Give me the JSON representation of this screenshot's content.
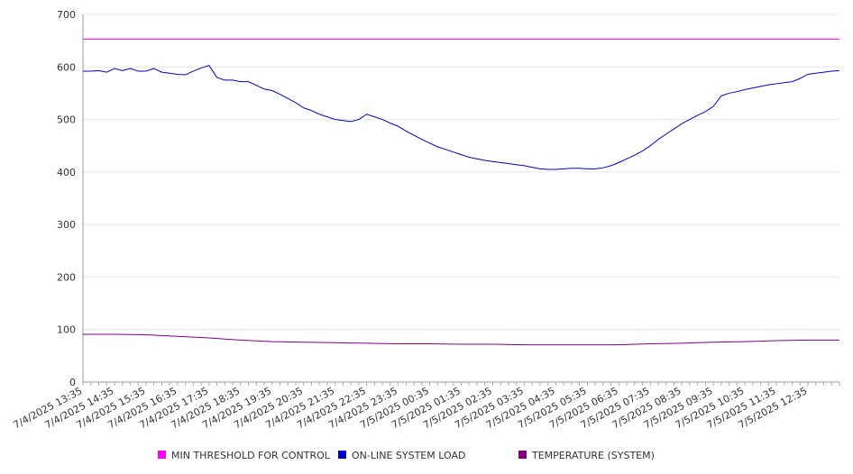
{
  "chart_data": {
    "type": "line",
    "title": "",
    "xlabel": "",
    "ylabel": "",
    "ylim": [
      0,
      700
    ],
    "yticks": [
      0,
      100,
      200,
      300,
      400,
      500,
      600,
      700
    ],
    "x_start": "7/4/2025 13:35",
    "x_end": "7/5/2025 13:35",
    "x_tick_labels": [
      "7/4/2025 13:35",
      "7/4/2025 14:35",
      "7/4/2025 15:35",
      "7/4/2025 16:35",
      "7/4/2025 17:35",
      "7/4/2025 18:35",
      "7/4/2025 19:35",
      "7/4/2025 20:35",
      "7/4/2025 21:35",
      "7/4/2025 22:35",
      "7/4/2025 23:35",
      "7/5/2025 00:35",
      "7/5/2025 01:35",
      "7/5/2025 02:35",
      "7/5/2025 03:35",
      "7/5/2025 04:35",
      "7/5/2025 05:35",
      "7/5/2025 06:35",
      "7/5/2025 07:35",
      "7/5/2025 08:35",
      "7/5/2025 09:35",
      "7/5/2025 10:35",
      "7/5/2025 11:35",
      "7/5/2025 12:35"
    ],
    "grid": true,
    "legend_position": "bottom",
    "series": [
      {
        "name": "MIN THRESHOLD FOR CONTROL",
        "color": "#ff00ff",
        "points": [
          [
            "7/4/2025 13:35",
            653
          ],
          [
            "7/5/2025 13:35",
            653
          ]
        ]
      },
      {
        "name": "ON-LINE SYSTEM LOAD",
        "color": "#0000cc",
        "points": [
          [
            "7/4/2025 13:35",
            592
          ],
          [
            "7/4/2025 13:50",
            592
          ],
          [
            "7/4/2025 14:05",
            593
          ],
          [
            "7/4/2025 14:20",
            590
          ],
          [
            "7/4/2025 14:35",
            597
          ],
          [
            "7/4/2025 14:50",
            593
          ],
          [
            "7/4/2025 15:05",
            597
          ],
          [
            "7/4/2025 15:20",
            592
          ],
          [
            "7/4/2025 15:35",
            592
          ],
          [
            "7/4/2025 15:50",
            597
          ],
          [
            "7/4/2025 16:05",
            590
          ],
          [
            "7/4/2025 16:20",
            588
          ],
          [
            "7/4/2025 16:35",
            586
          ],
          [
            "7/4/2025 16:50",
            585
          ],
          [
            "7/4/2025 17:05",
            592
          ],
          [
            "7/4/2025 17:20",
            598
          ],
          [
            "7/4/2025 17:35",
            603
          ],
          [
            "7/4/2025 17:50",
            580
          ],
          [
            "7/4/2025 18:05",
            575
          ],
          [
            "7/4/2025 18:20",
            575
          ],
          [
            "7/4/2025 18:35",
            572
          ],
          [
            "7/4/2025 18:50",
            572
          ],
          [
            "7/4/2025 19:05",
            565
          ],
          [
            "7/4/2025 19:20",
            558
          ],
          [
            "7/4/2025 19:35",
            555
          ],
          [
            "7/4/2025 19:50",
            548
          ],
          [
            "7/4/2025 20:05",
            540
          ],
          [
            "7/4/2025 20:20",
            532
          ],
          [
            "7/4/2025 20:35",
            522
          ],
          [
            "7/4/2025 20:50",
            517
          ],
          [
            "7/4/2025 21:05",
            510
          ],
          [
            "7/4/2025 21:20",
            505
          ],
          [
            "7/4/2025 21:35",
            500
          ],
          [
            "7/4/2025 21:50",
            498
          ],
          [
            "7/4/2025 22:05",
            496
          ],
          [
            "7/4/2025 22:20",
            500
          ],
          [
            "7/4/2025 22:35",
            510
          ],
          [
            "7/4/2025 22:50",
            505
          ],
          [
            "7/4/2025 23:05",
            500
          ],
          [
            "7/4/2025 23:20",
            493
          ],
          [
            "7/4/2025 23:35",
            487
          ],
          [
            "7/4/2025 23:50",
            478
          ],
          [
            "7/5/2025 00:05",
            470
          ],
          [
            "7/5/2025 00:20",
            462
          ],
          [
            "7/5/2025 00:35",
            455
          ],
          [
            "7/5/2025 00:50",
            448
          ],
          [
            "7/5/2025 01:05",
            443
          ],
          [
            "7/5/2025 01:20",
            438
          ],
          [
            "7/5/2025 01:35",
            433
          ],
          [
            "7/5/2025 01:50",
            428
          ],
          [
            "7/5/2025 02:05",
            425
          ],
          [
            "7/5/2025 02:20",
            422
          ],
          [
            "7/5/2025 02:35",
            420
          ],
          [
            "7/5/2025 02:50",
            418
          ],
          [
            "7/5/2025 03:05",
            416
          ],
          [
            "7/5/2025 03:20",
            414
          ],
          [
            "7/5/2025 03:35",
            412
          ],
          [
            "7/5/2025 03:50",
            409
          ],
          [
            "7/5/2025 04:05",
            406
          ],
          [
            "7/5/2025 04:20",
            405
          ],
          [
            "7/5/2025 04:35",
            405
          ],
          [
            "7/5/2025 04:50",
            406
          ],
          [
            "7/5/2025 05:05",
            407
          ],
          [
            "7/5/2025 05:20",
            407
          ],
          [
            "7/5/2025 05:35",
            406
          ],
          [
            "7/5/2025 05:50",
            406
          ],
          [
            "7/5/2025 06:05",
            408
          ],
          [
            "7/5/2025 06:20",
            412
          ],
          [
            "7/5/2025 06:35",
            418
          ],
          [
            "7/5/2025 06:50",
            425
          ],
          [
            "7/5/2025 07:05",
            432
          ],
          [
            "7/5/2025 07:20",
            440
          ],
          [
            "7/5/2025 07:35",
            450
          ],
          [
            "7/5/2025 07:50",
            462
          ],
          [
            "7/5/2025 08:05",
            472
          ],
          [
            "7/5/2025 08:20",
            482
          ],
          [
            "7/5/2025 08:35",
            492
          ],
          [
            "7/5/2025 08:50",
            500
          ],
          [
            "7/5/2025 09:05",
            508
          ],
          [
            "7/5/2025 09:20",
            515
          ],
          [
            "7/5/2025 09:35",
            525
          ],
          [
            "7/5/2025 09:50",
            545
          ],
          [
            "7/5/2025 10:05",
            550
          ],
          [
            "7/5/2025 10:20",
            553
          ],
          [
            "7/5/2025 10:35",
            557
          ],
          [
            "7/5/2025 10:50",
            560
          ],
          [
            "7/5/2025 11:05",
            563
          ],
          [
            "7/5/2025 11:20",
            566
          ],
          [
            "7/5/2025 11:35",
            568
          ],
          [
            "7/5/2025 11:50",
            570
          ],
          [
            "7/5/2025 12:05",
            572
          ],
          [
            "7/5/2025 12:20",
            578
          ],
          [
            "7/5/2025 12:35",
            586
          ],
          [
            "7/5/2025 12:50",
            588
          ],
          [
            "7/5/2025 13:05",
            590
          ],
          [
            "7/5/2025 13:20",
            592
          ],
          [
            "7/5/2025 13:35",
            593
          ]
        ]
      },
      {
        "name": "TEMPERATURE (SYSTEM)",
        "color": "#800080",
        "points": [
          [
            "7/4/2025 13:35",
            91
          ],
          [
            "7/4/2025 14:35",
            91
          ],
          [
            "7/4/2025 15:35",
            90
          ],
          [
            "7/4/2025 16:35",
            87
          ],
          [
            "7/4/2025 17:35",
            84
          ],
          [
            "7/4/2025 18:35",
            80
          ],
          [
            "7/4/2025 19:35",
            77
          ],
          [
            "7/4/2025 20:35",
            76
          ],
          [
            "7/4/2025 21:35",
            75
          ],
          [
            "7/4/2025 22:35",
            74
          ],
          [
            "7/4/2025 23:35",
            73
          ],
          [
            "7/5/2025 00:35",
            73
          ],
          [
            "7/5/2025 01:35",
            72
          ],
          [
            "7/5/2025 02:35",
            72
          ],
          [
            "7/5/2025 03:35",
            71
          ],
          [
            "7/5/2025 04:35",
            71
          ],
          [
            "7/5/2025 05:35",
            71
          ],
          [
            "7/5/2025 06:35",
            71
          ],
          [
            "7/5/2025 07:35",
            73
          ],
          [
            "7/5/2025 08:35",
            74
          ],
          [
            "7/5/2025 09:35",
            76
          ],
          [
            "7/5/2025 10:35",
            77
          ],
          [
            "7/5/2025 11:35",
            79
          ],
          [
            "7/5/2025 12:35",
            80
          ],
          [
            "7/5/2025 13:35",
            80
          ]
        ]
      }
    ]
  }
}
